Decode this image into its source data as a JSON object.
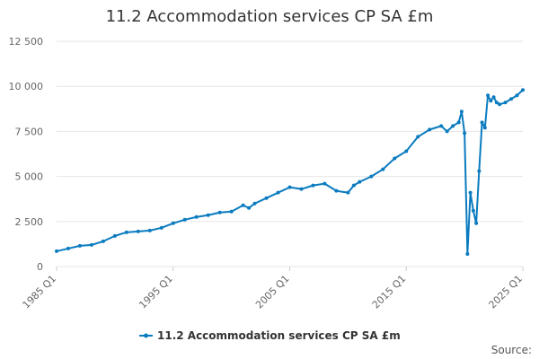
{
  "chart_data": {
    "type": "line",
    "title": "11.2 Accommodation services CP SA £m",
    "xlabel": "",
    "ylabel": "",
    "ylim": [
      0,
      12500
    ],
    "y_ticks": [
      0,
      2500,
      5000,
      7500,
      10000,
      12500
    ],
    "y_tick_labels": [
      "0",
      "2 500",
      "5 000",
      "7 500",
      "10 000",
      "12 500"
    ],
    "x_range": [
      "1985 Q1",
      "2025 Q1"
    ],
    "x_ticks": [
      "1985 Q1",
      "1995 Q1",
      "2005 Q1",
      "2015 Q1",
      "2025 Q1"
    ],
    "grid": true,
    "legend_position": "bottom",
    "color": "#0a7bbf",
    "series": [
      {
        "name": "11.2 Accommodation services CP SA £m",
        "x": [
          "1985 Q1",
          "1986 Q1",
          "1987 Q1",
          "1988 Q1",
          "1989 Q1",
          "1990 Q1",
          "1991 Q1",
          "1992 Q1",
          "1993 Q1",
          "1994 Q1",
          "1995 Q1",
          "1996 Q1",
          "1997 Q1",
          "1998 Q1",
          "1999 Q1",
          "2000 Q1",
          "2001 Q1",
          "2001 Q3",
          "2002 Q1",
          "2003 Q1",
          "2004 Q1",
          "2005 Q1",
          "2006 Q1",
          "2007 Q1",
          "2008 Q1",
          "2009 Q1",
          "2010 Q1",
          "2010 Q3",
          "2011 Q1",
          "2012 Q1",
          "2013 Q1",
          "2014 Q1",
          "2015 Q1",
          "2016 Q1",
          "2017 Q1",
          "2018 Q1",
          "2018 Q3",
          "2019 Q1",
          "2019 Q3",
          "2019 Q4",
          "2020 Q1",
          "2020 Q2",
          "2020 Q3",
          "2020 Q4",
          "2021 Q1",
          "2021 Q2",
          "2021 Q3",
          "2021 Q4",
          "2022 Q1",
          "2022 Q2",
          "2022 Q3",
          "2022 Q4",
          "2023 Q1",
          "2023 Q3",
          "2024 Q1",
          "2024 Q3",
          "2025 Q1"
        ],
        "values": [
          850,
          1000,
          1150,
          1200,
          1400,
          1700,
          1900,
          1950,
          2000,
          2150,
          2400,
          2600,
          2750,
          2850,
          3000,
          3050,
          3400,
          3250,
          3500,
          3800,
          4100,
          4400,
          4300,
          4500,
          4600,
          4200,
          4100,
          4500,
          4700,
          5000,
          5400,
          6000,
          6400,
          7200,
          7600,
          7800,
          7500,
          7800,
          8000,
          8600,
          7400,
          700,
          4100,
          3100,
          2400,
          5300,
          8000,
          7700,
          9500,
          9200,
          9400,
          9100,
          9000,
          9100,
          9300,
          9500,
          9800
        ]
      }
    ],
    "source_label": "Source:"
  }
}
